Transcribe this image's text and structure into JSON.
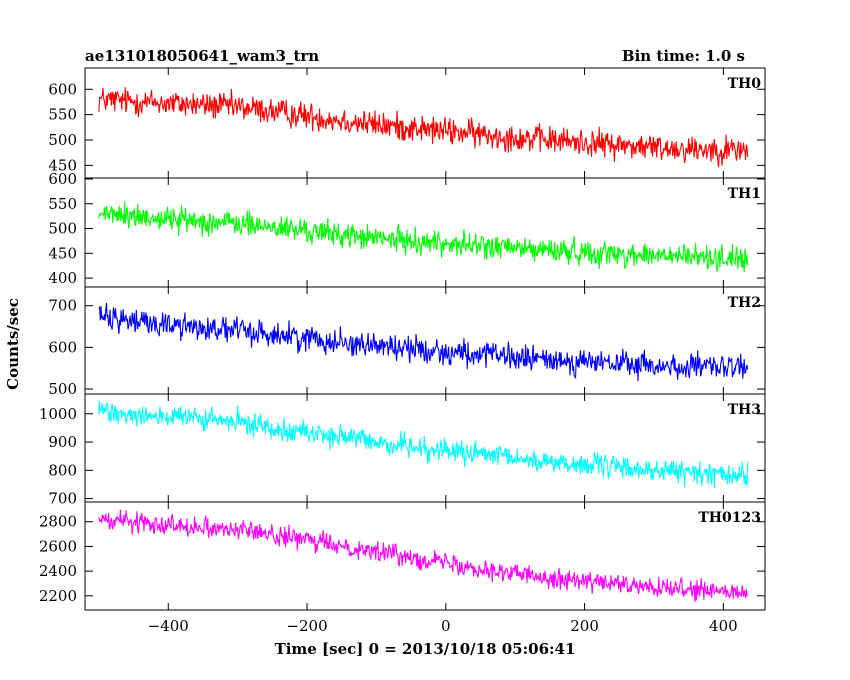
{
  "header": {
    "title": "ae131018050641_wam3_trn",
    "bin_time": "Bin time: 1.0 s"
  },
  "chart_data": {
    "type": "line",
    "title": "ae131018050641_wam3_trn",
    "subtitle": "Bin time: 1.0 s",
    "xlabel": "Time [sec] 0 = 2013/10/18 05:06:41",
    "ylabel": "Counts/sec",
    "xlim": [
      -520,
      460
    ],
    "x_range_data": [
      -500,
      435
    ],
    "xticks": [
      -400,
      -200,
      0,
      200,
      400
    ],
    "grid": false,
    "legend": "none",
    "panels": [
      {
        "name": "TH0",
        "color": "#ff0000",
        "ylim": [
          425,
          642
        ],
        "yticks": [
          450,
          500,
          550,
          600
        ],
        "trend": {
          "x": [
            -500,
            -300,
            -100,
            100,
            300,
            435
          ],
          "y": [
            580,
            565,
            530,
            505,
            485,
            480
          ]
        },
        "noise_amplitude": 30
      },
      {
        "name": "TH1",
        "color": "#00ff00",
        "ylim": [
          382,
          602
        ],
        "yticks": [
          400,
          450,
          500,
          550,
          600
        ],
        "trend": {
          "x": [
            -500,
            -300,
            -100,
            100,
            300,
            435
          ],
          "y": [
            530,
            510,
            480,
            460,
            445,
            440
          ]
        },
        "noise_amplitude": 28
      },
      {
        "name": "TH2",
        "color": "#0000ff",
        "ylim": [
          488,
          745
        ],
        "yticks": [
          500,
          600,
          700
        ],
        "trend": {
          "x": [
            -500,
            -300,
            -100,
            100,
            300,
            435
          ],
          "y": [
            670,
            640,
            605,
            575,
            555,
            550
          ]
        },
        "noise_amplitude": 35
      },
      {
        "name": "TH3",
        "color": "#00ffff",
        "ylim": [
          688,
          1070
        ],
        "yticks": [
          700,
          800,
          900,
          1000
        ],
        "trend": {
          "x": [
            -500,
            -300,
            -100,
            100,
            300,
            435
          ],
          "y": [
            1010,
            970,
            900,
            840,
            800,
            780
          ]
        },
        "noise_amplitude": 45
      },
      {
        "name": "TH0123",
        "color": "#ff00ff",
        "ylim": [
          2085,
          2960
        ],
        "yticks": [
          2200,
          2400,
          2600,
          2800
        ],
        "trend": {
          "x": [
            -500,
            -300,
            -100,
            100,
            300,
            435
          ],
          "y": [
            2820,
            2740,
            2560,
            2380,
            2260,
            2220
          ]
        },
        "noise_amplitude": 90
      }
    ]
  }
}
